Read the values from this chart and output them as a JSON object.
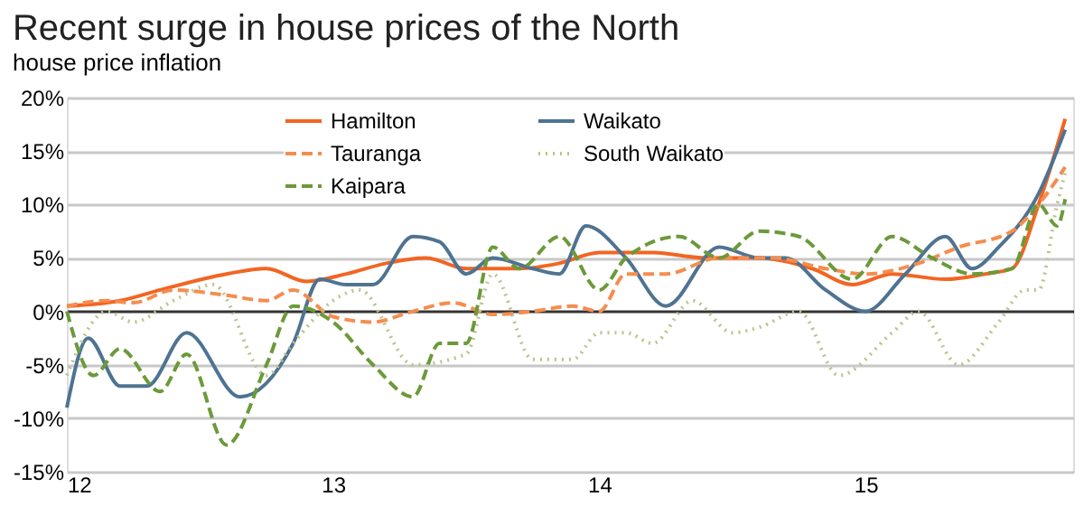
{
  "chart_data": {
    "type": "line",
    "title": "Recent surge in house prices of the North",
    "subtitle": "house price inflation",
    "xlim": [
      12,
      15.78
    ],
    "xticks": [
      12,
      13,
      14,
      15
    ],
    "ylim": [
      -15,
      20
    ],
    "yticks": [
      {
        "value": -15,
        "label": "-15%"
      },
      {
        "value": -10,
        "label": "-10%"
      },
      {
        "value": -5,
        "label": "-5%"
      },
      {
        "value": 0,
        "label": "0%"
      },
      {
        "value": 5,
        "label": "5%"
      },
      {
        "value": 10,
        "label": "10%"
      },
      {
        "value": 15,
        "label": "15%"
      },
      {
        "value": 20,
        "label": "20%"
      }
    ],
    "grid": "y",
    "legend": "top",
    "marker": "none",
    "series": [
      {
        "name": "Hamilton",
        "color": "#f26522",
        "line_style": "solid",
        "x": [
          12.0,
          12.2,
          12.35,
          12.6,
          12.75,
          12.9,
          13.05,
          13.2,
          13.35,
          13.5,
          13.7,
          13.85,
          14.0,
          14.2,
          14.4,
          14.6,
          14.8,
          14.95,
          15.1,
          15.3,
          15.45,
          15.55,
          15.65,
          15.75
        ],
        "values": [
          0.5,
          1,
          2,
          3.5,
          4,
          2.8,
          3.5,
          4.5,
          5,
          4,
          4,
          4.5,
          5.5,
          5.5,
          5,
          5,
          4,
          2.5,
          3.5,
          3,
          3.5,
          4,
          10,
          18
        ]
      },
      {
        "name": "Waikato",
        "color": "#4f7391",
        "line_style": "solid",
        "x": [
          12.0,
          12.08,
          12.2,
          12.3,
          12.45,
          12.65,
          12.85,
          12.95,
          13.05,
          13.15,
          13.3,
          13.4,
          13.5,
          13.6,
          13.75,
          13.85,
          13.95,
          14.1,
          14.25,
          14.45,
          14.6,
          14.7,
          14.85,
          15.0,
          15.15,
          15.3,
          15.4,
          15.5,
          15.65,
          15.75
        ],
        "values": [
          -9,
          -2.5,
          -7,
          -7,
          -2,
          -8,
          -3,
          3,
          2.5,
          2.5,
          7,
          6.5,
          3.5,
          5,
          4,
          3.5,
          8,
          5,
          0.5,
          6,
          5,
          5,
          2,
          0,
          3.5,
          7,
          4,
          6,
          11,
          17
        ]
      },
      {
        "name": "Tauranga",
        "color": "#f58d4f",
        "line_style": "dashed",
        "x": [
          12.0,
          12.15,
          12.25,
          12.4,
          12.6,
          12.75,
          12.85,
          13.0,
          13.15,
          13.3,
          13.45,
          13.6,
          13.75,
          13.9,
          14.0,
          14.1,
          14.25,
          14.45,
          14.65,
          14.85,
          15.0,
          15.2,
          15.35,
          15.55,
          15.65,
          15.75
        ],
        "values": [
          0.5,
          1,
          0.8,
          2,
          1.5,
          1,
          2,
          -0.5,
          -1,
          0,
          0.8,
          -0.3,
          0,
          0.5,
          0,
          3.5,
          3.5,
          5,
          5,
          4,
          3.5,
          4.5,
          6,
          7.5,
          10,
          13.5
        ]
      },
      {
        "name": "South Waikato",
        "color": "#b8c48a",
        "line_style": "dotted",
        "x": [
          12.0,
          12.15,
          12.25,
          12.4,
          12.55,
          12.75,
          12.85,
          13.0,
          13.1,
          13.3,
          13.5,
          13.6,
          13.75,
          13.9,
          14.0,
          14.1,
          14.2,
          14.35,
          14.5,
          14.6,
          14.75,
          14.9,
          15.1,
          15.2,
          15.35,
          15.5,
          15.6,
          15.65,
          15.72,
          15.75
        ],
        "values": [
          -6,
          0,
          -1,
          1,
          2.5,
          -6,
          -3,
          1,
          2,
          -5,
          -4,
          3.5,
          -4.5,
          -4.5,
          -2,
          -2,
          -3,
          1,
          -2,
          -1.5,
          0,
          -6,
          -2,
          0,
          -5,
          -1,
          2,
          2,
          10,
          13
        ]
      },
      {
        "name": "Kaipara",
        "color": "#6b9a3a",
        "line_style": "dashed",
        "x": [
          12.0,
          12.1,
          12.2,
          12.35,
          12.45,
          12.6,
          12.75,
          12.85,
          13.0,
          13.15,
          13.3,
          13.4,
          13.5,
          13.6,
          13.7,
          13.85,
          14.0,
          14.1,
          14.3,
          14.45,
          14.6,
          14.75,
          14.95,
          15.1,
          15.25,
          15.4,
          15.55,
          15.65,
          15.72,
          15.75
        ],
        "values": [
          0,
          -6,
          -3.5,
          -7.5,
          -4,
          -12.5,
          -5,
          0.5,
          -1,
          -5,
          -8,
          -3,
          -3,
          6,
          4,
          7,
          2,
          5,
          7,
          5,
          7.5,
          7,
          3,
          7,
          5,
          3.5,
          4,
          10,
          8,
          10.5
        ]
      }
    ]
  }
}
